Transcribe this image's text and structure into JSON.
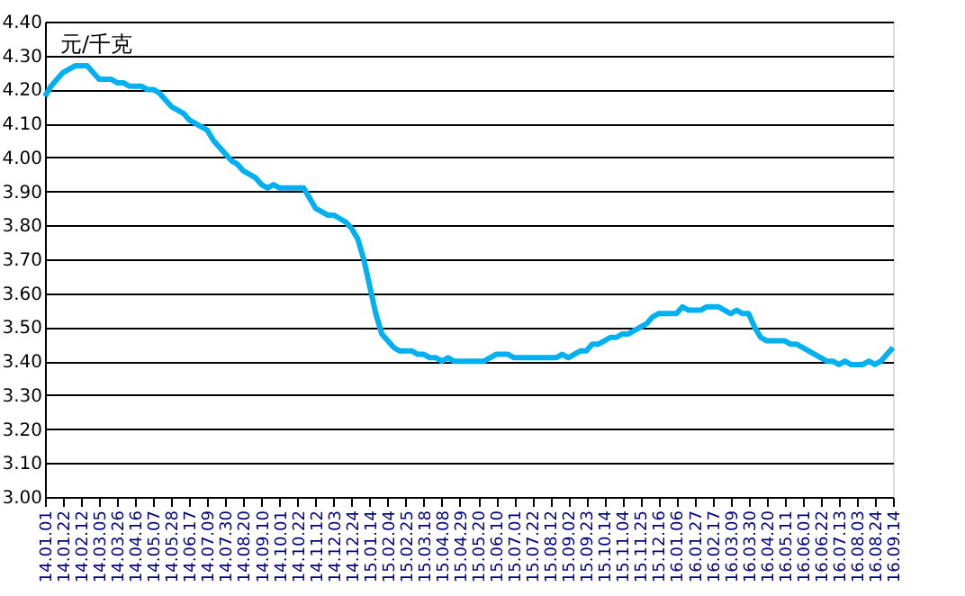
{
  "chart_data": {
    "type": "line",
    "ylabel": "元/千克",
    "categories": [
      "14.01.01",
      null,
      null,
      "14.01.22",
      null,
      null,
      "14.02.12",
      null,
      null,
      "14.03.05",
      null,
      null,
      "14.03.26",
      null,
      null,
      "14.04.16",
      null,
      null,
      "14.05.07",
      null,
      null,
      "14.05.28",
      null,
      null,
      "14.06.17",
      null,
      null,
      "14.07.09",
      null,
      null,
      "14.07.30",
      null,
      null,
      "14.08.20",
      null,
      null,
      "14.09.10",
      null,
      null,
      "14.10.01",
      null,
      null,
      "14.10.22",
      null,
      null,
      "14.11.12",
      null,
      null,
      "14.12.03",
      null,
      null,
      "14.12.24",
      null,
      null,
      "15.01.14",
      null,
      null,
      "15.02.04",
      null,
      null,
      "15.02.25",
      null,
      null,
      "15.03.18",
      null,
      null,
      "15.04.08",
      null,
      null,
      "15.04.29",
      null,
      null,
      "15.05.20",
      null,
      null,
      "15.06.10",
      null,
      null,
      "15.07.01",
      null,
      null,
      "15.07.22",
      null,
      null,
      "15.08.12",
      null,
      null,
      "15.09.02",
      null,
      null,
      "15.09.23",
      null,
      null,
      "15.10.14",
      null,
      null,
      "15.11.04",
      null,
      null,
      "15.11.25",
      null,
      null,
      "15.12.16",
      null,
      null,
      "16.01.06",
      null,
      null,
      "16.01.27",
      null,
      null,
      "16.02.17",
      null,
      null,
      "16.03.09",
      null,
      null,
      "16.03.30",
      null,
      null,
      "16.04.20",
      null,
      null,
      "16.05.11",
      null,
      null,
      "16.06.01",
      null,
      null,
      "16.06.22",
      null,
      null,
      "16.07.13",
      null,
      null,
      "16.08.03",
      null,
      null,
      "16.08.24",
      null,
      null,
      "16.09.14"
    ],
    "series": [
      {
        "color": "#00b0f0",
        "values": [
          4.18,
          4.21,
          4.23,
          4.25,
          4.26,
          4.27,
          4.27,
          4.27,
          4.25,
          4.23,
          4.23,
          4.23,
          4.22,
          4.22,
          4.21,
          4.21,
          4.21,
          4.2,
          4.2,
          4.19,
          4.17,
          4.15,
          4.14,
          4.13,
          4.11,
          4.1,
          4.09,
          4.08,
          4.05,
          4.03,
          4.01,
          3.99,
          3.98,
          3.96,
          3.95,
          3.94,
          3.92,
          3.91,
          3.92,
          3.91,
          3.91,
          3.91,
          3.91,
          3.91,
          3.88,
          3.85,
          3.84,
          3.83,
          3.83,
          3.82,
          3.81,
          3.79,
          3.76,
          3.7,
          3.62,
          3.54,
          3.48,
          3.46,
          3.44,
          3.43,
          3.43,
          3.43,
          3.42,
          3.42,
          3.41,
          3.41,
          3.4,
          3.41,
          3.4,
          3.4,
          3.4,
          3.4,
          3.4,
          3.4,
          3.41,
          3.42,
          3.42,
          3.42,
          3.41,
          3.41,
          3.41,
          3.41,
          3.41,
          3.41,
          3.41,
          3.41,
          3.42,
          3.41,
          3.42,
          3.43,
          3.43,
          3.45,
          3.45,
          3.46,
          3.47,
          3.47,
          3.48,
          3.48,
          3.49,
          3.5,
          3.51,
          3.53,
          3.54,
          3.54,
          3.54,
          3.54,
          3.56,
          3.55,
          3.55,
          3.55,
          3.56,
          3.56,
          3.56,
          3.55,
          3.54,
          3.55,
          3.54,
          3.54,
          3.5,
          3.47,
          3.46,
          3.46,
          3.46,
          3.46,
          3.45,
          3.45,
          3.44,
          3.43,
          3.42,
          3.41,
          3.4,
          3.4,
          3.39,
          3.4,
          3.39,
          3.39,
          3.39,
          3.4,
          3.39,
          3.4,
          3.42,
          3.44
        ]
      }
    ],
    "ylim": [
      3.0,
      4.4
    ],
    "yticks": [
      {
        "value": 3.0,
        "label": "3.00"
      },
      {
        "value": 3.1,
        "label": "3.10"
      },
      {
        "value": 3.2,
        "label": "3.20"
      },
      {
        "value": 3.3,
        "label": "3.30"
      },
      {
        "value": 3.4,
        "label": "3.40"
      },
      {
        "value": 3.5,
        "label": "3.50"
      },
      {
        "value": 3.6,
        "label": "3.60"
      },
      {
        "value": 3.7,
        "label": "3.70"
      },
      {
        "value": 3.8,
        "label": "3.80"
      },
      {
        "value": 3.9,
        "label": "3.90"
      },
      {
        "value": 4.0,
        "label": "4.00"
      },
      {
        "value": 4.1,
        "label": "4.10"
      },
      {
        "value": 4.2,
        "label": "4.20"
      },
      {
        "value": 4.3,
        "label": "4.30"
      },
      {
        "value": 4.4,
        "label": "4.40"
      }
    ],
    "grid": "y",
    "legend": false,
    "marker": "none",
    "line_style": "solid"
  }
}
